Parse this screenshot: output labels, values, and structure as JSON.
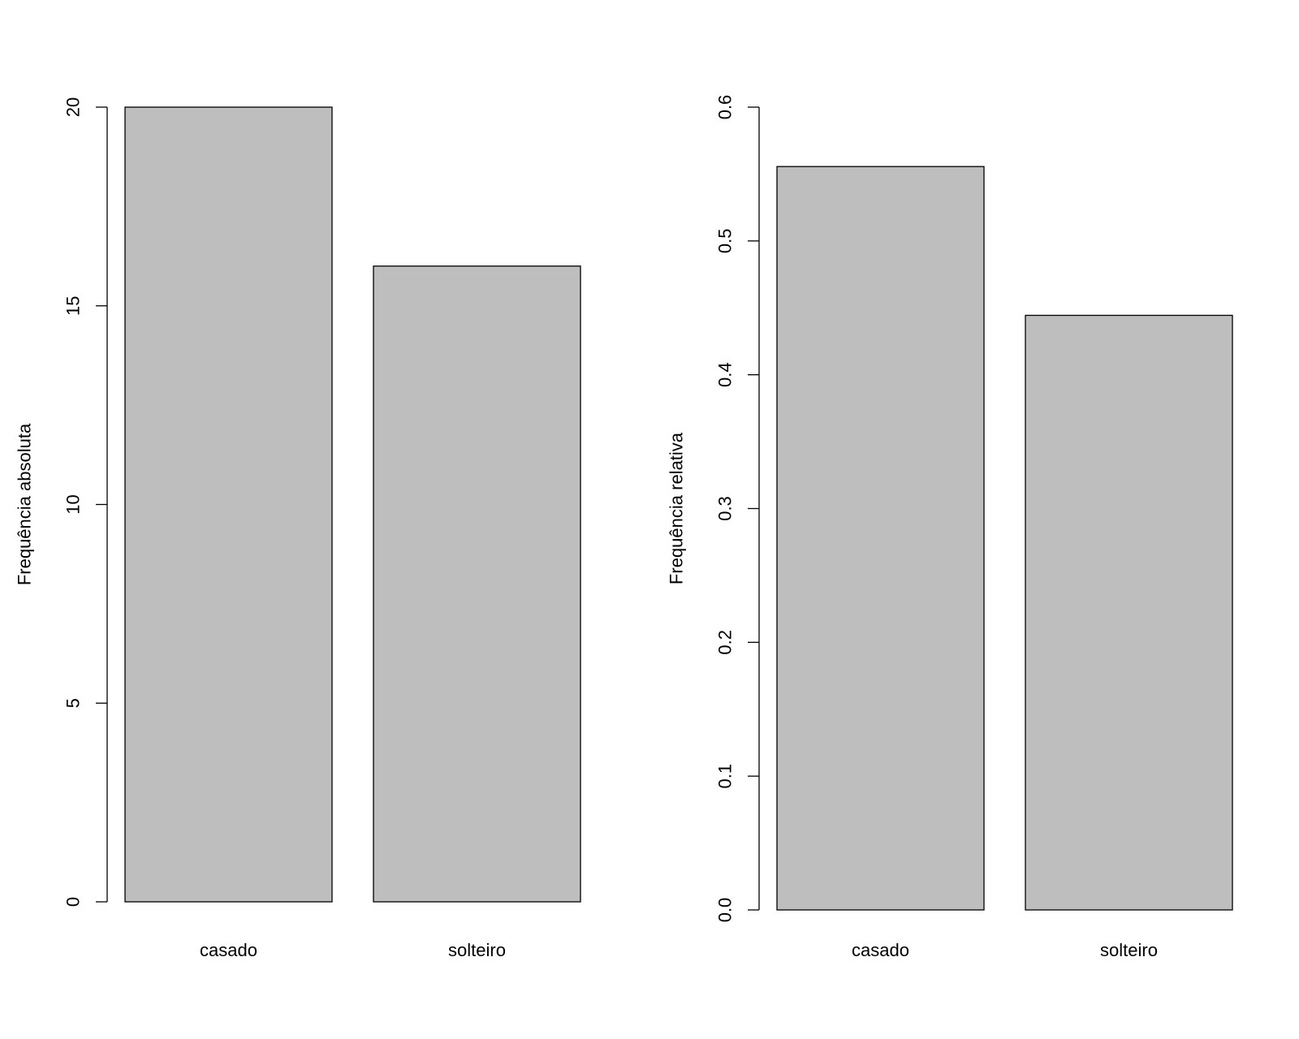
{
  "chart_data": [
    {
      "type": "bar",
      "categories": [
        "casado",
        "solteiro"
      ],
      "values": [
        20,
        16
      ],
      "xlabel": "",
      "ylabel": "Frequência absoluta",
      "ylim": [
        0,
        20
      ],
      "yticks": [
        0,
        5,
        10,
        15,
        20
      ],
      "ytick_labels": [
        "0",
        "5",
        "10",
        "15",
        "20"
      ],
      "bar_color": "#bebebe",
      "grid": false
    },
    {
      "type": "bar",
      "categories": [
        "casado",
        "solteiro"
      ],
      "values": [
        0.5556,
        0.4444
      ],
      "xlabel": "",
      "ylabel": "Frequência relativa",
      "ylim": [
        0,
        0.6
      ],
      "yticks": [
        0.0,
        0.1,
        0.2,
        0.3,
        0.4,
        0.5,
        0.6
      ],
      "ytick_labels": [
        "0.0",
        "0.1",
        "0.2",
        "0.3",
        "0.4",
        "0.5",
        "0.6"
      ],
      "bar_color": "#bebebe",
      "grid": false
    }
  ]
}
